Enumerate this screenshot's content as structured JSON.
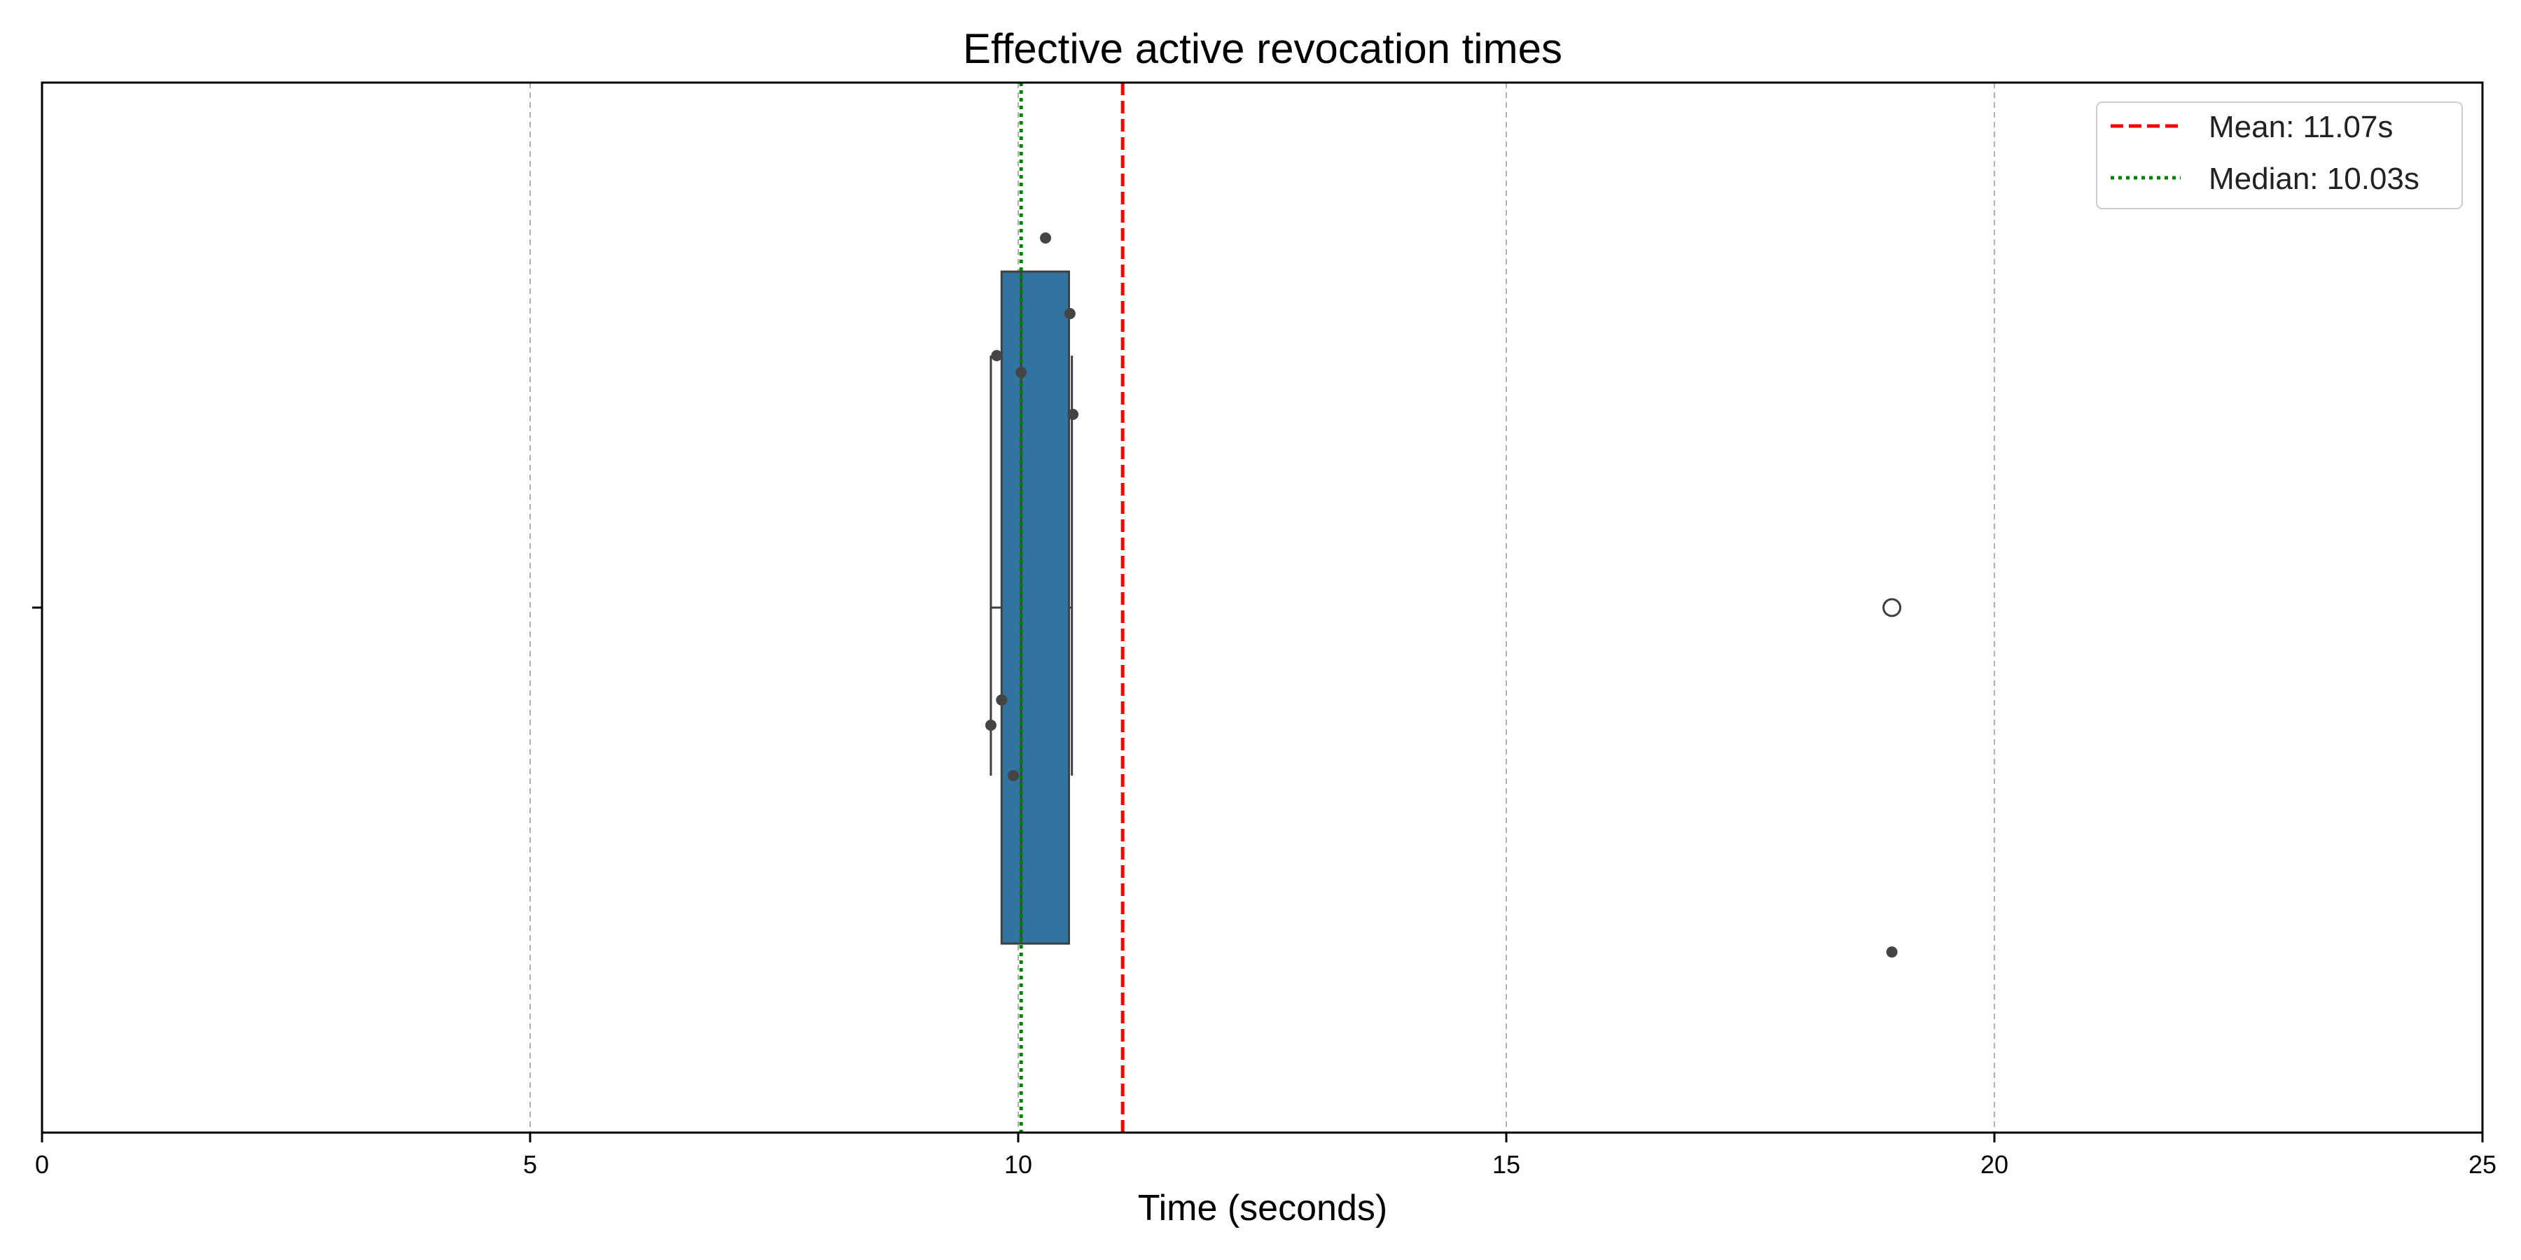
{
  "chart_data": {
    "type": "box",
    "title": "Effective active revocation times",
    "xlabel": "Time (seconds)",
    "ylabel": "",
    "xlim": [
      0,
      25
    ],
    "xticks": [
      0,
      5,
      10,
      15,
      20,
      25
    ],
    "grid": "vertical dashed",
    "legend_position": "top-right",
    "box": {
      "q1": 9.83,
      "median": 10.03,
      "q3": 10.52,
      "whisker_low": 9.72,
      "whisker_high": 10.55,
      "outliers": [
        18.95
      ],
      "color": "#3274a1",
      "edge_color": "#3f3f3f"
    },
    "points": [
      {
        "x": 10.28,
        "y": -0.44
      },
      {
        "x": 10.53,
        "y": -0.35
      },
      {
        "x": 9.78,
        "y": -0.3
      },
      {
        "x": 10.03,
        "y": -0.28
      },
      {
        "x": 10.56,
        "y": -0.23
      },
      {
        "x": 9.83,
        "y": 0.11
      },
      {
        "x": 9.72,
        "y": 0.14
      },
      {
        "x": 9.95,
        "y": 0.2
      },
      {
        "x": 18.95,
        "y": 0.41
      }
    ],
    "point_color": "#444444",
    "mean": {
      "label": "Mean: 11.07s",
      "value": 11.07,
      "color": "#ff0000",
      "style": "dashed"
    },
    "median_line": {
      "label": "Median: 10.03s",
      "value": 10.03,
      "color": "#008000",
      "style": "dotted"
    }
  }
}
